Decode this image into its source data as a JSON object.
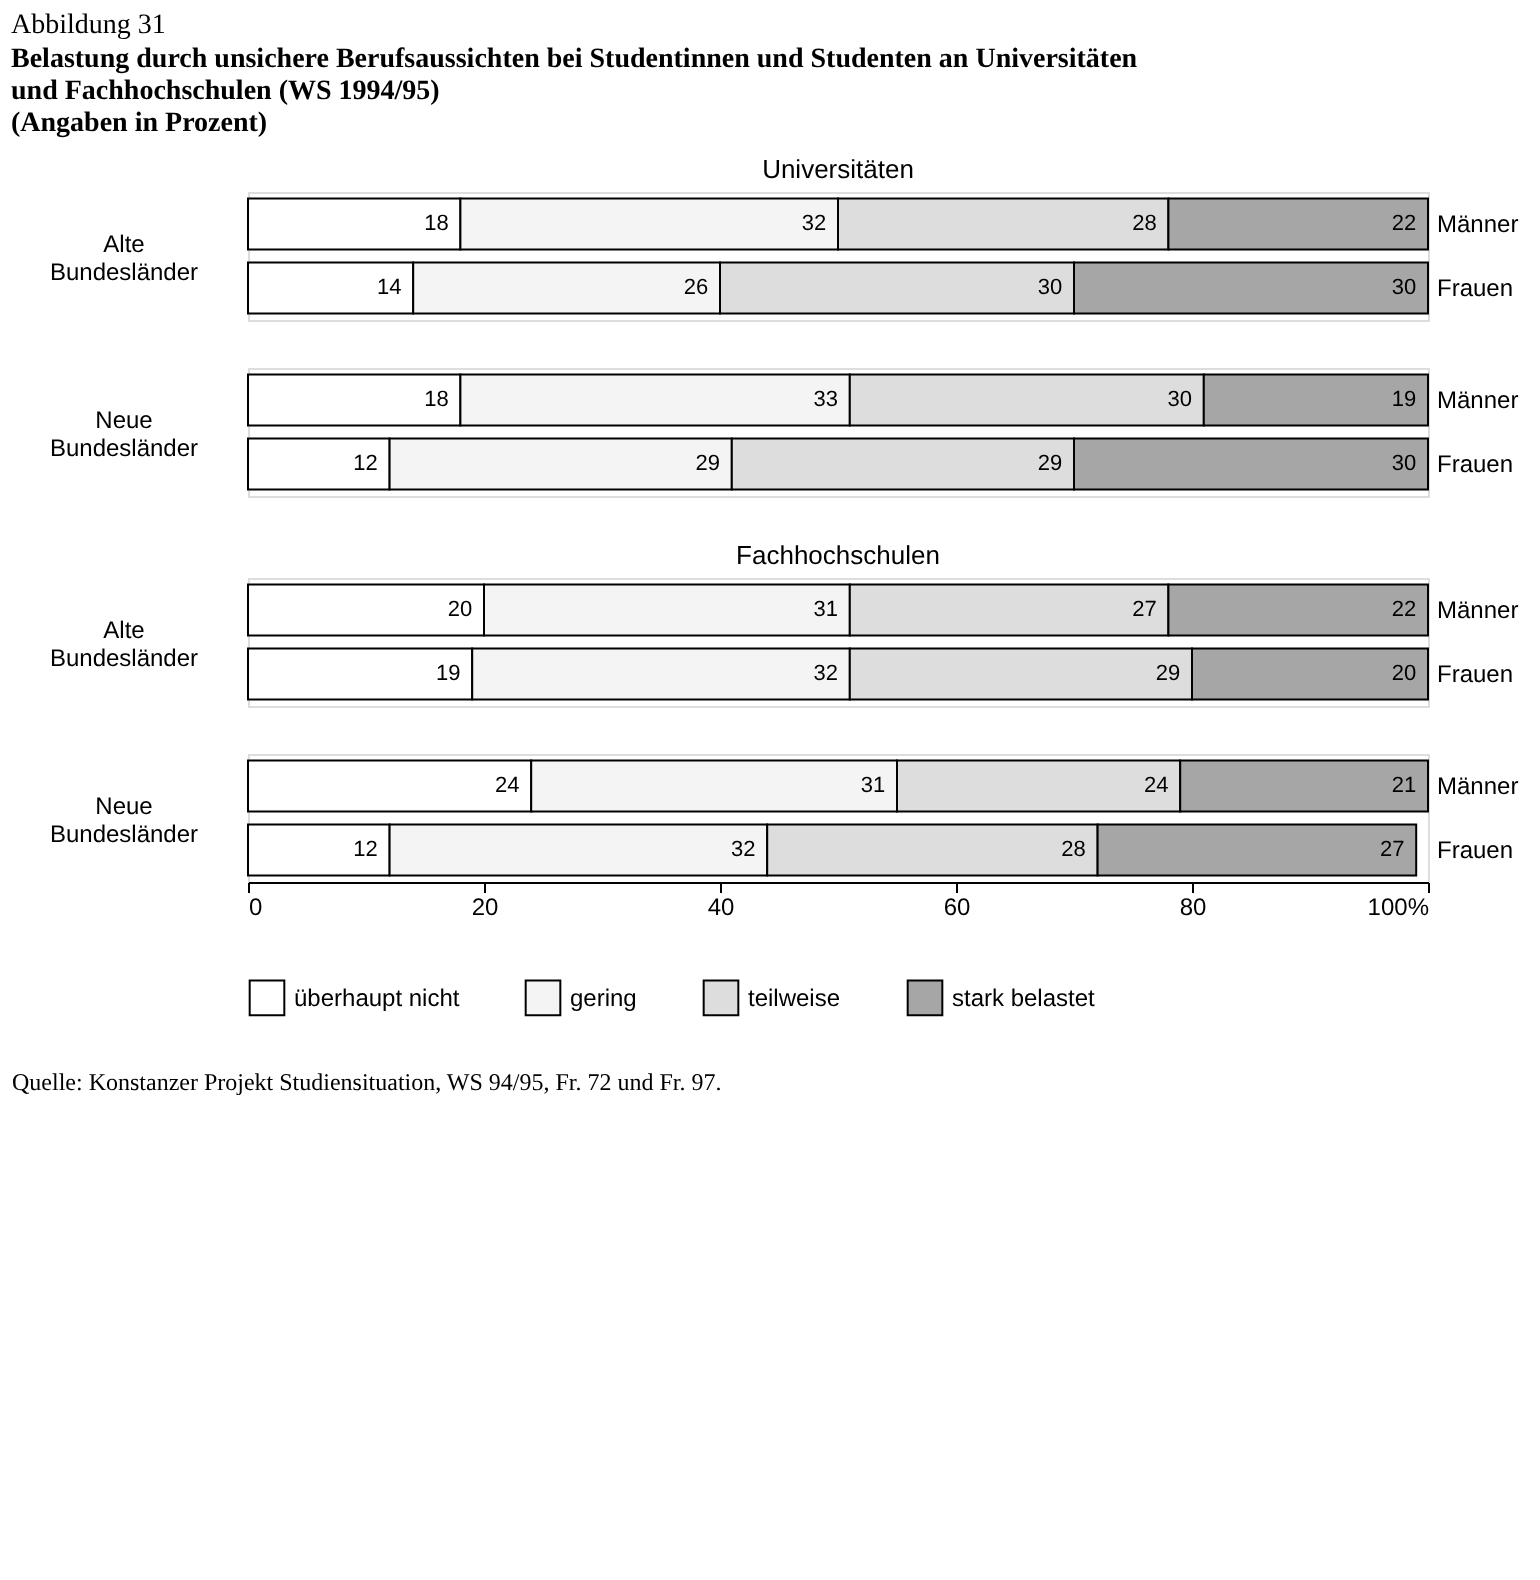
{
  "chart_data": [
    {
      "type": "bar",
      "orientation": "horizontal",
      "stacked": true,
      "title": "Universitäten",
      "ylabel": "Alte Bundesländer",
      "categories": [
        "Männer",
        "Frauen"
      ],
      "xlim": [
        0,
        100
      ],
      "tick_labels": "y",
      "data_labels": true,
      "annotations": [
        "Abbildung 31",
        "Belastung durch unsichere Berufsaussichten bei Studentinnen und Studenten an Universitäten und Fachhochschulen (WS 1994/95)",
        "(Angaben in Prozent)"
      ],
      "series": [
        {
          "color": "#ffffff",
          "values": [
            18,
            14
          ]
        },
        {
          "color": "#f4f4f4",
          "values": [
            32,
            26
          ]
        },
        {
          "color": "#dddddd",
          "values": [
            28,
            30
          ]
        },
        {
          "color": "#a6a6a6",
          "values": [
            22,
            30
          ]
        }
      ]
    },
    {
      "type": "bar",
      "orientation": "horizontal",
      "stacked": true,
      "ylabel": "Neue Bundesländer",
      "categories": [
        "Männer",
        "Frauen"
      ],
      "xlim": [
        0,
        100
      ],
      "tick_labels": "y",
      "data_labels": true,
      "series": [
        {
          "color": "#ffffff",
          "values": [
            18,
            12
          ]
        },
        {
          "color": "#f4f4f4",
          "values": [
            33,
            29
          ]
        },
        {
          "color": "#dddddd",
          "values": [
            30,
            29
          ]
        },
        {
          "color": "#a6a6a6",
          "values": [
            19,
            30
          ]
        }
      ]
    },
    {
      "type": "bar",
      "orientation": "horizontal",
      "stacked": true,
      "title": "Fachhochschulen",
      "ylabel": "Alte Bundesländer",
      "categories": [
        "Männer",
        "Frauen"
      ],
      "xlim": [
        0,
        100
      ],
      "tick_labels": "y",
      "data_labels": true,
      "series": [
        {
          "color": "#ffffff",
          "values": [
            20,
            19
          ]
        },
        {
          "color": "#f4f4f4",
          "values": [
            31,
            32
          ]
        },
        {
          "color": "#dddddd",
          "values": [
            27,
            29
          ]
        },
        {
          "color": "#a6a6a6",
          "values": [
            22,
            20
          ]
        }
      ]
    },
    {
      "type": "bar",
      "orientation": "horizontal",
      "stacked": true,
      "ylabel": "Neue Bundesländer",
      "categories": [
        "Männer",
        "Frauen"
      ],
      "xlim": [
        0,
        100
      ],
      "xticks": [
        0,
        20,
        40,
        60,
        80,
        {
          "value": 100,
          "label": "100%"
        }
      ],
      "data_labels": true,
      "legend": "bottom",
      "annotations": [
        "Quelle: Konstanzer Projekt Studiensituation, WS 94/95, Fr. 72 und Fr. 97."
      ],
      "series": [
        {
          "name": "überhaupt nicht",
          "color": "#ffffff",
          "values": [
            24,
            12
          ]
        },
        {
          "name": "gering",
          "color": "#f4f4f4",
          "values": [
            31,
            32
          ]
        },
        {
          "name": "teilweise",
          "color": "#dddddd",
          "values": [
            24,
            28
          ]
        },
        {
          "name": "stark belastet",
          "color": "#a6a6a6",
          "values": [
            21,
            27
          ]
        }
      ]
    }
  ]
}
